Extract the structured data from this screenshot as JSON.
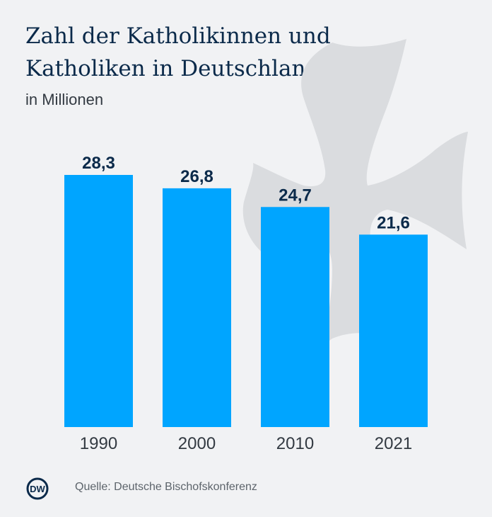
{
  "title_line1": "Zahl der Katholikinnen und",
  "title_line2": "Katholiken in Deutschland",
  "unit": "in Millionen",
  "source": "Quelle: Deutsche Bischofskonferenz",
  "logo_text": "DW",
  "colors": {
    "bar": "#00a5ff",
    "label": "#0b2a4a",
    "background": "#f1f2f4",
    "cross": "#dadcdf"
  },
  "chart_data": {
    "type": "bar",
    "title": "Zahl der Katholikinnen und Katholiken in Deutschland",
    "subtitle": "in Millionen",
    "categories": [
      "1990",
      "2000",
      "2010",
      "2021"
    ],
    "values": [
      28.3,
      26.8,
      24.7,
      21.6
    ],
    "value_labels": [
      "28,3",
      "26,8",
      "24,7",
      "21,6"
    ],
    "xlabel": "",
    "ylabel": "",
    "ylim": [
      0,
      28.3
    ],
    "grid": false,
    "legend": "none"
  }
}
